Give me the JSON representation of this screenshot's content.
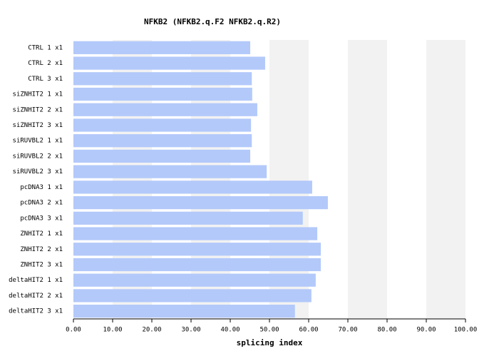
{
  "chart_data": {
    "type": "hbar",
    "title": "NFKB2 (NFKB2.q.F2  NFKB2.q.R2)",
    "x_label": "splicing index",
    "categories": [
      "CTRL 1 x1",
      "CTRL 2 x1",
      "CTRL 3 x1",
      "siZNHIT2 1 x1",
      "siZNHIT2 2 x1",
      "siZNHIT2 3 x1",
      "siRUVBL2 1 x1",
      "siRUVBL2 2 x1",
      "siRUVBL2 3 x1",
      "pcDNA3 1 x1",
      "pcDNA3 2 x1",
      "pcDNA3 3 x1",
      "ZNHIT2 1 x1",
      "ZNHIT2 2 x1",
      "ZNHIT2 3 x1",
      "deltaHIT2 1 x1",
      "deltaHIT2 2 x1",
      "deltaHIT2 3 x1"
    ],
    "values": [
      45.1,
      48.9,
      45.5,
      45.6,
      46.9,
      45.3,
      45.5,
      45.1,
      49.3,
      60.9,
      64.9,
      58.5,
      62.2,
      63.1,
      63.1,
      61.8,
      60.7,
      56.5
    ],
    "color": "#b3c9fa",
    "xlim": [
      0,
      100
    ],
    "xticks": [
      {
        "value": 0,
        "label": "0.00"
      },
      {
        "value": 10,
        "label": "10.00"
      },
      {
        "value": 20,
        "label": "20.00"
      },
      {
        "value": 30,
        "label": "30.00"
      },
      {
        "value": 40,
        "label": "40.00"
      },
      {
        "value": 50,
        "label": "50.00"
      },
      {
        "value": 60,
        "label": "60.00"
      },
      {
        "value": 70,
        "label": "70.00"
      },
      {
        "value": 80,
        "label": "80.00"
      },
      {
        "value": 90,
        "label": "90.00"
      },
      {
        "value": 100,
        "label": "100.00"
      }
    ]
  }
}
